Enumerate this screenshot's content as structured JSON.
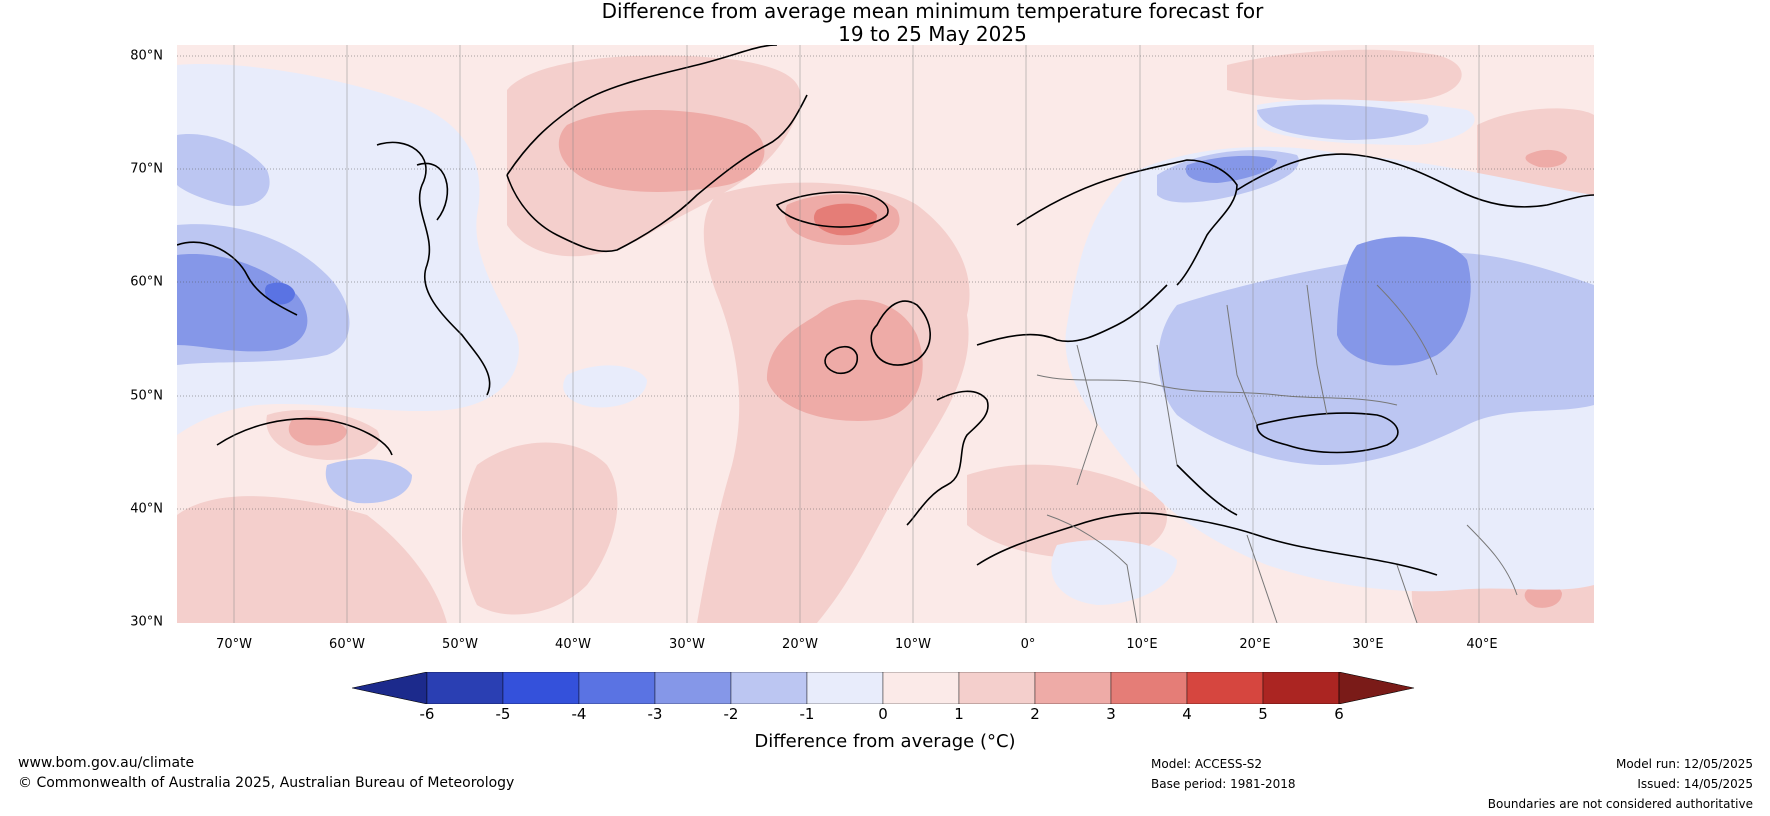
{
  "title": {
    "line1": "Difference from average mean minimum temperature forecast for",
    "line2": "19 to 25 May 2025"
  },
  "map": {
    "lat_labels": [
      "80°N",
      "70°N",
      "60°N",
      "50°N",
      "40°N",
      "30°N"
    ],
    "lon_labels": [
      "70°W",
      "60°W",
      "50°W",
      "40°W",
      "30°W",
      "20°W",
      "10°W",
      "0°",
      "10°E",
      "20°E",
      "30°E",
      "40°E"
    ]
  },
  "colorbar": {
    "label": "Difference from average (°C)",
    "ticks": [
      "-6",
      "-5",
      "-4",
      "-3",
      "-2",
      "-1",
      "0",
      "1",
      "2",
      "3",
      "4",
      "5",
      "6"
    ],
    "colors": [
      "#1c2a8c",
      "#2a3fb3",
      "#3451db",
      "#5a73e3",
      "#8597e8",
      "#bcc6f2",
      "#e8ecfb",
      "#fbeae8",
      "#f4cfcc",
      "#eeaba7",
      "#e57d77",
      "#d6463f",
      "#ab2522",
      "#7a1b18"
    ]
  },
  "footer": {
    "website": "www.bom.gov.au/climate",
    "copyright": "© Commonwealth of Australia 2025, Australian Bureau of Meteorology",
    "model": "Model: ACCESS-S2",
    "base_period": "Base period: 1981-2018",
    "model_run": "Model run: 12/05/2025",
    "issued": "Issued: 14/05/2025",
    "disclaimer": "Boundaries are not considered authoritative"
  }
}
